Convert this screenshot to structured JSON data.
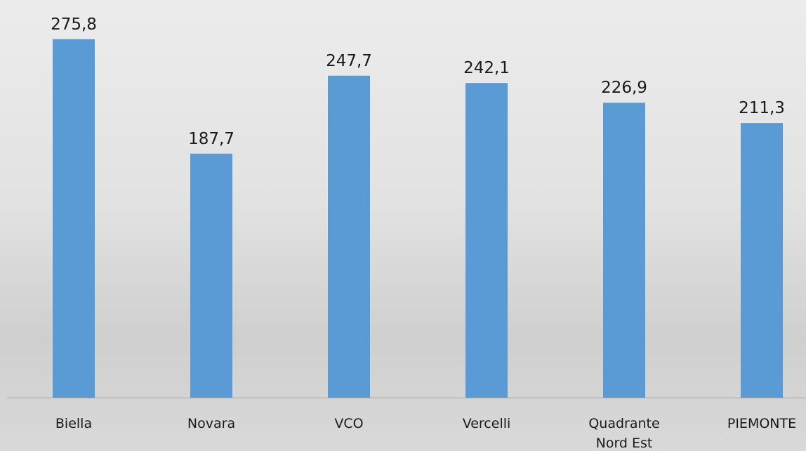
{
  "chart_data": {
    "type": "bar",
    "categories": [
      "Biella",
      "Novara",
      "VCO",
      "Vercelli",
      "Quadrante\nNord Est",
      "PIEMONTE"
    ],
    "values": [
      275.8,
      187.7,
      247.7,
      242.1,
      226.9,
      211.3
    ],
    "value_labels": [
      "275,8",
      "187,7",
      "247,7",
      "242,1",
      "226,9",
      "211,3"
    ],
    "color": "#5b9bd5",
    "ylim": [
      0,
      300
    ]
  }
}
